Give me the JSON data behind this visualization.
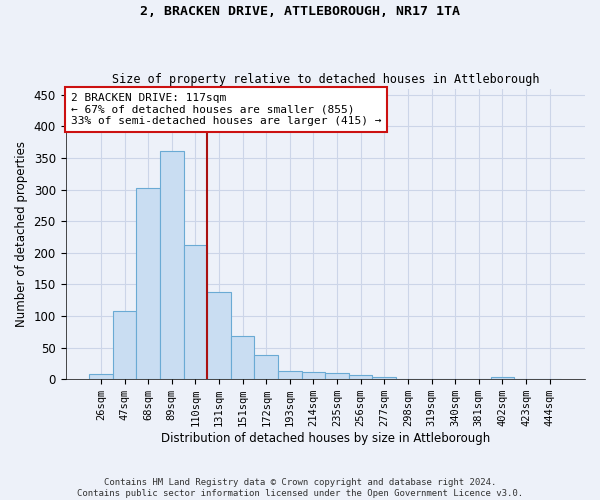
{
  "title1": "2, BRACKEN DRIVE, ATTLEBOROUGH, NR17 1TA",
  "title2": "Size of property relative to detached houses in Attleborough",
  "xlabel": "Distribution of detached houses by size in Attleborough",
  "ylabel": "Number of detached properties",
  "categories": [
    "26sqm",
    "47sqm",
    "68sqm",
    "89sqm",
    "110sqm",
    "131sqm",
    "151sqm",
    "172sqm",
    "193sqm",
    "214sqm",
    "235sqm",
    "256sqm",
    "277sqm",
    "298sqm",
    "319sqm",
    "340sqm",
    "381sqm",
    "402sqm",
    "423sqm",
    "444sqm"
  ],
  "values": [
    9,
    108,
    302,
    361,
    213,
    138,
    69,
    38,
    13,
    11,
    10,
    6,
    3,
    0,
    0,
    0,
    0,
    4,
    0,
    0
  ],
  "bar_color": "#c9ddf2",
  "bar_edge_color": "#6aaad4",
  "grid_color": "#ccd5e8",
  "bg_color": "#edf1f9",
  "vline_x": 4.5,
  "vline_color": "#aa1111",
  "annotation_line1": "2 BRACKEN DRIVE: 117sqm",
  "annotation_line2": "← 67% of detached houses are smaller (855)",
  "annotation_line3": "33% of semi-detached houses are larger (415) →",
  "annotation_box_color": "#ffffff",
  "annotation_box_edge": "#cc1111",
  "footnote": "Contains HM Land Registry data © Crown copyright and database right 2024.\nContains public sector information licensed under the Open Government Licence v3.0.",
  "ylim": [
    0,
    460
  ],
  "yticks": [
    0,
    50,
    100,
    150,
    200,
    250,
    300,
    350,
    400,
    450
  ]
}
